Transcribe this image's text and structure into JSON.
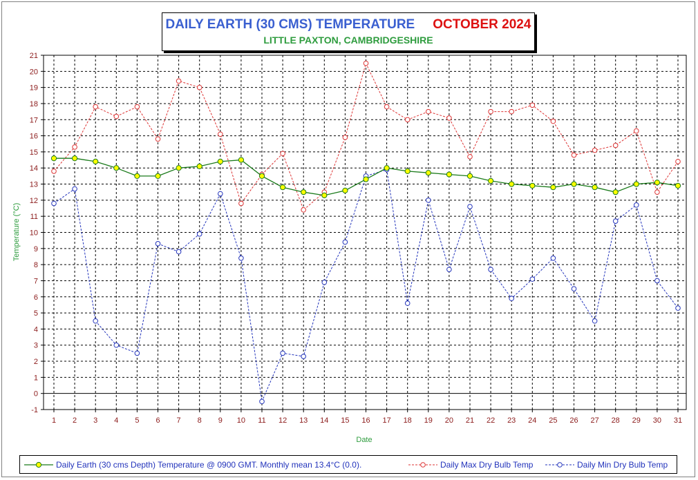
{
  "title": {
    "main": "DAILY EARTH (30 CMS) TEMPERATURE",
    "month": "OCTOBER 2024",
    "subtitle": "LITTLE PAXTON, CAMBRIDGESHIRE"
  },
  "colors": {
    "earth": "#1a7a1a",
    "earth_marker": "#ffff00",
    "max": "#dd3333",
    "min": "#2233bb",
    "axis_label": "#2e9c3e",
    "tick_label": "#8b1a1a"
  },
  "chart_data": {
    "type": "line",
    "title": "DAILY EARTH (30 CMS) TEMPERATURE OCTOBER 2024",
    "subtitle": "LITTLE PAXTON, CAMBRIDGESHIRE",
    "xlabel": "Date",
    "ylabel": "Temperature (°C)",
    "ylim": [
      -1,
      21
    ],
    "grid": true,
    "legend_position": "bottom",
    "x": [
      1,
      2,
      3,
      4,
      5,
      6,
      7,
      8,
      9,
      10,
      11,
      12,
      13,
      14,
      15,
      16,
      17,
      18,
      19,
      20,
      21,
      22,
      23,
      24,
      25,
      26,
      27,
      28,
      29,
      30,
      31
    ],
    "yticks": [
      -1,
      0,
      1,
      2,
      3,
      4,
      5,
      6,
      7,
      8,
      9,
      10,
      11,
      12,
      13,
      14,
      15,
      16,
      17,
      18,
      19,
      20,
      21
    ],
    "series": [
      {
        "name": "Daily Earth (30 cms Depth) Temperature @ 0900 GMT. Monthly mean 13.4°C (0.0).",
        "style": "solid",
        "values": [
          14.6,
          14.6,
          14.4,
          14.0,
          13.5,
          13.5,
          14.0,
          14.1,
          14.4,
          14.5,
          13.5,
          12.8,
          12.5,
          12.3,
          12.6,
          13.3,
          14.0,
          13.8,
          13.7,
          13.6,
          13.5,
          13.2,
          13.0,
          12.9,
          12.8,
          13.0,
          12.8,
          12.5,
          13.0,
          13.1,
          12.9
        ]
      },
      {
        "name": "Daily Max Dry Bulb Temp",
        "style": "dashed",
        "values": [
          13.8,
          15.3,
          17.8,
          17.2,
          17.8,
          15.8,
          19.4,
          19.0,
          16.1,
          11.8,
          13.6,
          14.9,
          11.4,
          12.5,
          15.9,
          20.5,
          17.8,
          17.0,
          17.5,
          17.1,
          14.7,
          17.5,
          17.5,
          17.9,
          16.9,
          14.8,
          15.1,
          15.4,
          16.3,
          12.5,
          14.4
        ]
      },
      {
        "name": "Daily Min Dry Bulb Temp",
        "style": "dashed",
        "values": [
          11.8,
          12.7,
          4.5,
          3.0,
          2.5,
          9.3,
          8.8,
          9.9,
          12.4,
          8.4,
          -0.5,
          2.5,
          2.3,
          6.9,
          9.4,
          13.5,
          13.9,
          5.6,
          12.0,
          7.7,
          11.6,
          7.7,
          5.9,
          7.1,
          8.4,
          6.5,
          4.5,
          10.7,
          11.7,
          7.0,
          5.3
        ]
      }
    ]
  }
}
